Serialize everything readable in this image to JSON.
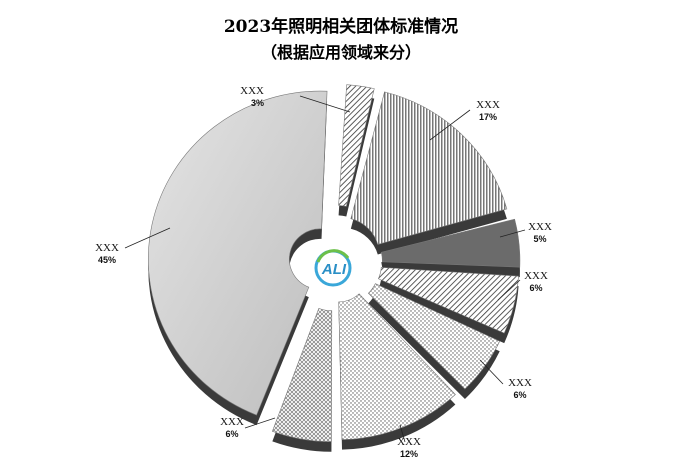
{
  "title_line1": "2023年照明相关团体标准情况",
  "title_line2": "（根据应用领域来分）",
  "logo_text": "ALI",
  "chart_data": {
    "type": "pie",
    "title": "2023年照明相关团体标准情况（根据应用领域来分）",
    "slices": [
      {
        "label": "XXX",
        "pct_label": "3%",
        "value": 3,
        "fill": "#c8c8c8",
        "pattern": "diag"
      },
      {
        "label": "XXX",
        "pct_label": "17%",
        "value": 17,
        "fill": "#555555",
        "pattern": "vert"
      },
      {
        "label": "XXX",
        "pct_label": "5%",
        "value": 5,
        "fill": "#6b6b6b",
        "pattern": "solid"
      },
      {
        "label": "XXX",
        "pct_label": "6%",
        "value": 6,
        "fill": "#8a8a8a",
        "pattern": "diag"
      },
      {
        "label": "XXX",
        "pct_label": "6%",
        "value": 6,
        "fill": "#bdbdbd",
        "pattern": "dots"
      },
      {
        "label": "XXX",
        "pct_label": "12%",
        "value": 12,
        "fill": "#a0a0a0",
        "pattern": "dots"
      },
      {
        "label": "XXX",
        "pct_label": "6%",
        "value": 6,
        "fill": "#9a9a9a",
        "pattern": "check"
      },
      {
        "label": "XXX",
        "pct_label": "45%",
        "value": 45,
        "fill": "#cfcfcf",
        "pattern": "solid"
      }
    ]
  }
}
